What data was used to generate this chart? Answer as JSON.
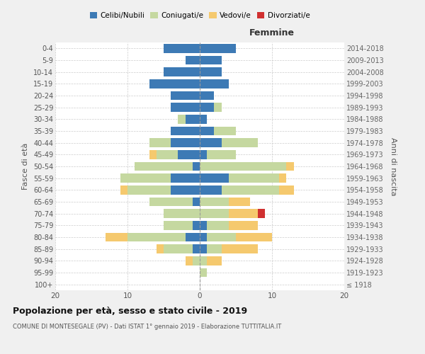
{
  "age_groups": [
    "100+",
    "95-99",
    "90-94",
    "85-89",
    "80-84",
    "75-79",
    "70-74",
    "65-69",
    "60-64",
    "55-59",
    "50-54",
    "45-49",
    "40-44",
    "35-39",
    "30-34",
    "25-29",
    "20-24",
    "15-19",
    "10-14",
    "5-9",
    "0-4"
  ],
  "birth_years": [
    "≤ 1918",
    "1919-1923",
    "1924-1928",
    "1929-1933",
    "1934-1938",
    "1939-1943",
    "1944-1948",
    "1949-1953",
    "1954-1958",
    "1959-1963",
    "1964-1968",
    "1969-1973",
    "1974-1978",
    "1979-1983",
    "1984-1988",
    "1989-1993",
    "1994-1998",
    "1999-2003",
    "2004-2008",
    "2009-2013",
    "2014-2018"
  ],
  "male": {
    "celibi": [
      0,
      0,
      0,
      1,
      2,
      1,
      0,
      1,
      4,
      4,
      1,
      3,
      4,
      4,
      2,
      4,
      4,
      7,
      5,
      2,
      5
    ],
    "coniugati": [
      0,
      0,
      1,
      4,
      8,
      4,
      5,
      6,
      6,
      7,
      8,
      3,
      3,
      0,
      1,
      0,
      0,
      0,
      0,
      0,
      0
    ],
    "vedovi": [
      0,
      0,
      1,
      1,
      3,
      0,
      0,
      0,
      1,
      0,
      0,
      1,
      0,
      0,
      0,
      0,
      0,
      0,
      0,
      0,
      0
    ],
    "divorziati": [
      0,
      0,
      0,
      0,
      0,
      0,
      0,
      0,
      0,
      0,
      0,
      0,
      0,
      0,
      0,
      0,
      0,
      0,
      0,
      0,
      0
    ]
  },
  "female": {
    "nubili": [
      0,
      0,
      0,
      1,
      1,
      1,
      0,
      0,
      3,
      4,
      0,
      1,
      3,
      2,
      1,
      2,
      2,
      4,
      3,
      3,
      5
    ],
    "coniugate": [
      0,
      1,
      1,
      2,
      4,
      3,
      4,
      4,
      8,
      7,
      12,
      4,
      5,
      3,
      0,
      1,
      0,
      0,
      0,
      0,
      0
    ],
    "vedove": [
      0,
      0,
      2,
      5,
      5,
      4,
      4,
      3,
      2,
      1,
      1,
      0,
      0,
      0,
      0,
      0,
      0,
      0,
      0,
      0,
      0
    ],
    "divorziate": [
      0,
      0,
      0,
      0,
      0,
      0,
      1,
      0,
      0,
      0,
      0,
      0,
      0,
      0,
      0,
      0,
      0,
      0,
      0,
      0,
      0
    ]
  },
  "colors": {
    "celibi": "#3d7ab5",
    "coniugati": "#c5d8a0",
    "vedovi": "#f5c96e",
    "divorziati": "#d03030"
  },
  "legend_labels": [
    "Celibi/Nubili",
    "Coniugati/e",
    "Vedovi/e",
    "Divorziati/e"
  ],
  "title": "Popolazione per età, sesso e stato civile - 2019",
  "subtitle": "COMUNE DI MONTESEGALE (PV) - Dati ISTAT 1° gennaio 2019 - Elaborazione TUTTITALIA.IT",
  "xlabel_right": "Femmine",
  "ylabel_left": "Fasce di età",
  "ylabel_right": "Anni di nascita",
  "xlim": 20,
  "bg_color": "#f0f0f0",
  "plot_bg_color": "#ffffff"
}
